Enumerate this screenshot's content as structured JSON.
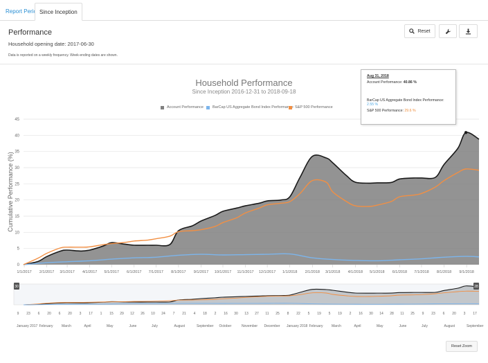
{
  "tabs": [
    {
      "label": "Report Period"
    },
    {
      "label": "Since Inception"
    }
  ],
  "header": {
    "title": "Performance",
    "opening_date": "Household opening date: 2017-06-30",
    "note": "Data is reported on a weekly frequency. Week-ending dates are shown."
  },
  "toolbar": {
    "reset_label": "Reset",
    "icons": [
      "search-icon",
      "wrench-icon",
      "download-icon"
    ]
  },
  "chart_header": {
    "title": "Household Performance",
    "subtitle": "Since Inception 2016-12-31 to 2018-09-18"
  },
  "colors": {
    "account": "#808080",
    "account_line": "#1a1a1a",
    "bond": "#7cb5ec",
    "sp500": "#f28f43"
  },
  "tooltip": {
    "date": "Aug 31, 2018",
    "account_label": "Account Performance:",
    "account_value": "40.86 %",
    "bond_label": "BarCap US Aggregate Bond Index Performance:",
    "bond_value": "2.55 %",
    "sp_label": "S&P 500 Performance:",
    "sp_value": "29.6 %"
  },
  "navigator": {
    "left_handle": "30",
    "right_handle": "28",
    "day_ticks": [
      "9",
      "23",
      "6",
      "20",
      "6",
      "20",
      "3",
      "17",
      "1",
      "15",
      "29",
      "12",
      "26",
      "10",
      "24",
      "7",
      "21",
      "4",
      "18",
      "2",
      "16",
      "30",
      "13",
      "27",
      "11",
      "25",
      "8",
      "22",
      "5",
      "19",
      "5",
      "19",
      "2",
      "16",
      "30",
      "14",
      "28",
      "11",
      "25",
      "9",
      "23",
      "6",
      "20",
      "3",
      "17"
    ],
    "month_labels": [
      "January 2017",
      "February",
      "March",
      "April",
      "May",
      "June",
      "July",
      "August",
      "September",
      "October",
      "November",
      "December",
      "January 2018",
      "February",
      "March",
      "April",
      "May",
      "June",
      "July",
      "August",
      "September"
    ]
  },
  "reset_zoom_label": "Reset Zoom",
  "chart_data": {
    "type": "area",
    "title": "Household Performance",
    "subtitle": "Since Inception 2016-12-31 to 2018-09-18",
    "ylabel": "Cumulative Performance (%)",
    "ylim": [
      0,
      45
    ],
    "yticks": [
      0,
      5,
      10,
      15,
      20,
      25,
      30,
      35,
      40,
      45
    ],
    "x_tick_labels": [
      "1/1/2017",
      "2/1/2017",
      "3/1/2017",
      "4/1/2017",
      "5/1/2017",
      "6/1/2017",
      "7/1/2017",
      "8/1/2017",
      "9/1/2017",
      "10/1/2017",
      "11/1/2017",
      "12/1/2017",
      "1/1/2018",
      "2/1/2018",
      "3/1/2018",
      "4/1/2018",
      "5/1/2018",
      "6/1/2018",
      "7/1/2018",
      "8/1/2018",
      "9/1/2018"
    ],
    "x_range": [
      "2016-12-31",
      "2018-09-18"
    ],
    "grid": true,
    "legend_position": "top",
    "series": [
      {
        "name": "Account Performance",
        "x": [
          "2016-12-31",
          "2017-01-20",
          "2017-02-01",
          "2017-02-20",
          "2017-03-01",
          "2017-03-20",
          "2017-04-01",
          "2017-04-20",
          "2017-05-01",
          "2017-05-20",
          "2017-06-01",
          "2017-06-20",
          "2017-07-01",
          "2017-07-20",
          "2017-08-01",
          "2017-08-20",
          "2017-09-01",
          "2017-09-20",
          "2017-10-01",
          "2017-10-20",
          "2017-11-01",
          "2017-11-20",
          "2017-12-01",
          "2017-12-20",
          "2018-01-01",
          "2018-01-15",
          "2018-02-01",
          "2018-02-20",
          "2018-03-01",
          "2018-03-20",
          "2018-04-01",
          "2018-04-20",
          "2018-05-01",
          "2018-05-20",
          "2018-06-01",
          "2018-06-20",
          "2018-07-01",
          "2018-07-20",
          "2018-08-01",
          "2018-08-20",
          "2018-08-31",
          "2018-09-18"
        ],
        "values": [
          0,
          1.0,
          2.5,
          4.2,
          4.5,
          4.2,
          4.5,
          5.8,
          6.8,
          6.3,
          6.0,
          6.0,
          6.0,
          6.2,
          10.5,
          12.0,
          13.5,
          15.2,
          16.5,
          17.5,
          18.2,
          19.0,
          19.7,
          20.0,
          21.0,
          27.0,
          33.5,
          33.0,
          31.5,
          27.5,
          25.5,
          25.2,
          25.3,
          25.4,
          26.5,
          26.8,
          26.8,
          27.0,
          31.0,
          36.0,
          40.86,
          38.8
        ]
      },
      {
        "name": "BarCap US Aggregate Bond Index Performance",
        "x": [
          "2016-12-31",
          "2017-02-01",
          "2017-03-01",
          "2017-04-01",
          "2017-05-01",
          "2017-06-01",
          "2017-07-01",
          "2017-08-01",
          "2017-09-01",
          "2017-10-01",
          "2017-11-01",
          "2017-12-01",
          "2018-01-01",
          "2018-02-01",
          "2018-03-01",
          "2018-04-01",
          "2018-05-01",
          "2018-06-01",
          "2018-07-01",
          "2018-08-01",
          "2018-08-31",
          "2018-09-18"
        ],
        "values": [
          0,
          0.6,
          0.9,
          1.2,
          1.7,
          2.1,
          2.3,
          2.9,
          3.2,
          3.0,
          3.1,
          3.2,
          3.3,
          2.1,
          1.6,
          1.3,
          1.2,
          1.5,
          1.8,
          2.3,
          2.55,
          2.4
        ]
      },
      {
        "name": "S&P 500 Performance",
        "x": [
          "2016-12-31",
          "2017-01-20",
          "2017-02-01",
          "2017-02-20",
          "2017-03-01",
          "2017-03-20",
          "2017-04-01",
          "2017-04-20",
          "2017-05-01",
          "2017-05-20",
          "2017-06-01",
          "2017-06-20",
          "2017-07-01",
          "2017-07-20",
          "2017-08-01",
          "2017-08-20",
          "2017-09-01",
          "2017-09-20",
          "2017-10-01",
          "2017-10-20",
          "2017-11-01",
          "2017-11-20",
          "2017-12-01",
          "2017-12-20",
          "2018-01-01",
          "2018-01-15",
          "2018-02-01",
          "2018-02-20",
          "2018-03-01",
          "2018-03-20",
          "2018-04-01",
          "2018-04-20",
          "2018-05-01",
          "2018-05-20",
          "2018-06-01",
          "2018-06-20",
          "2018-07-01",
          "2018-07-20",
          "2018-08-01",
          "2018-08-20",
          "2018-08-31",
          "2018-09-18"
        ],
        "values": [
          0,
          2.0,
          3.5,
          5.2,
          5.4,
          5.4,
          5.5,
          6.2,
          6.5,
          6.9,
          7.3,
          7.6,
          8.0,
          8.8,
          10.2,
          10.5,
          10.8,
          11.8,
          13.0,
          14.5,
          16.0,
          17.5,
          18.5,
          19.0,
          19.5,
          22.0,
          26.0,
          25.5,
          22.5,
          19.5,
          18.2,
          18.0,
          18.4,
          19.5,
          21.0,
          21.5,
          22.0,
          24.0,
          26.0,
          28.5,
          29.6,
          29.2
        ]
      }
    ]
  }
}
